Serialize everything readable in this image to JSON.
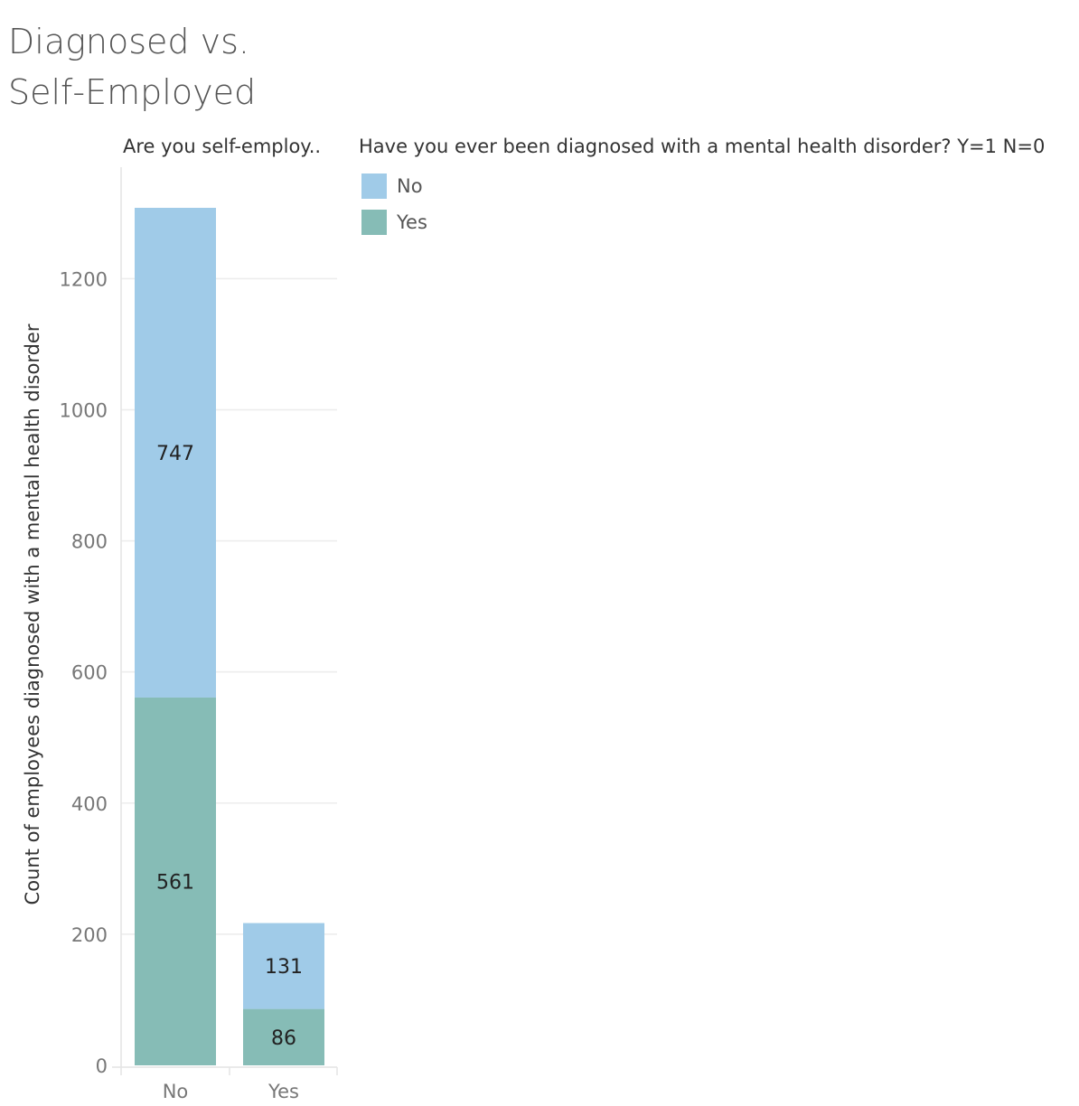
{
  "chart_data": {
    "type": "bar",
    "stacked": true,
    "title": "Diagnosed vs. Self-Employed",
    "column_header": "Are you self-employ..",
    "categories": [
      "No",
      "Yes"
    ],
    "series": [
      {
        "name": "Yes",
        "values": [
          561,
          86
        ],
        "color": "#86bcb6"
      },
      {
        "name": "No",
        "values": [
          747,
          131
        ],
        "color": "#a0cbe8"
      }
    ],
    "legend_title": "Have you ever been diagnosed with a mental health disorder? Y=1 N=0",
    "legend_entries": [
      {
        "label": "No",
        "color": "#a0cbe8"
      },
      {
        "label": "Yes",
        "color": "#86bcb6"
      }
    ],
    "ylabel": "Count of employees diagnosed with a mental health disorder",
    "xlabel": "",
    "yticks": [
      0,
      200,
      400,
      600,
      800,
      1000,
      1200
    ],
    "ylim": [
      0,
      1308
    ],
    "grid": true,
    "legend_position": "right"
  }
}
